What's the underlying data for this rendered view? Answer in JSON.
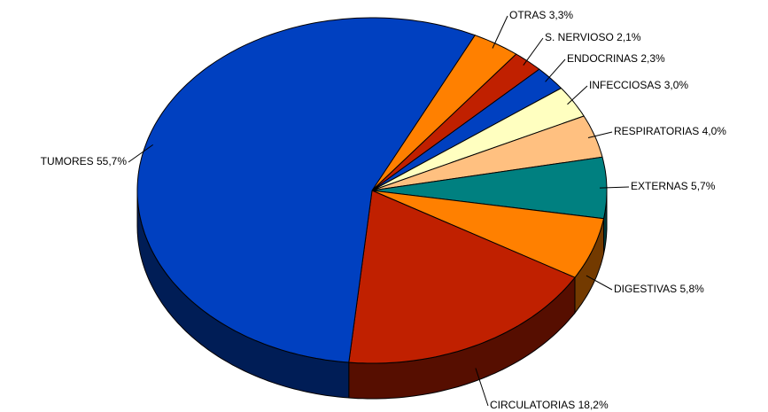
{
  "chart_data": {
    "type": "pie3d",
    "categories": [
      "OTRAS",
      "S. NERVIOSO",
      "ENDOCRINAS",
      "INFECCIOSAS",
      "RESPIRATORIAS",
      "EXTERNAS",
      "DIGESTIVAS",
      "CIRCULATORIAS",
      "TUMORES"
    ],
    "values": [
      3.3,
      2.1,
      2.3,
      3.0,
      4.0,
      5.7,
      5.8,
      18.2,
      55.7
    ],
    "value_labels": [
      "3,3%",
      "2,1%",
      "2,3%",
      "3,0%",
      "4,0%",
      "5,7%",
      "5,8%",
      "18,2%",
      "55,7%"
    ],
    "colors": [
      "#ff8000",
      "#c02000",
      "#0040c0",
      "#ffffc0",
      "#ffc080",
      "#008080",
      "#ff8000",
      "#c02000",
      "#0040c0"
    ]
  }
}
